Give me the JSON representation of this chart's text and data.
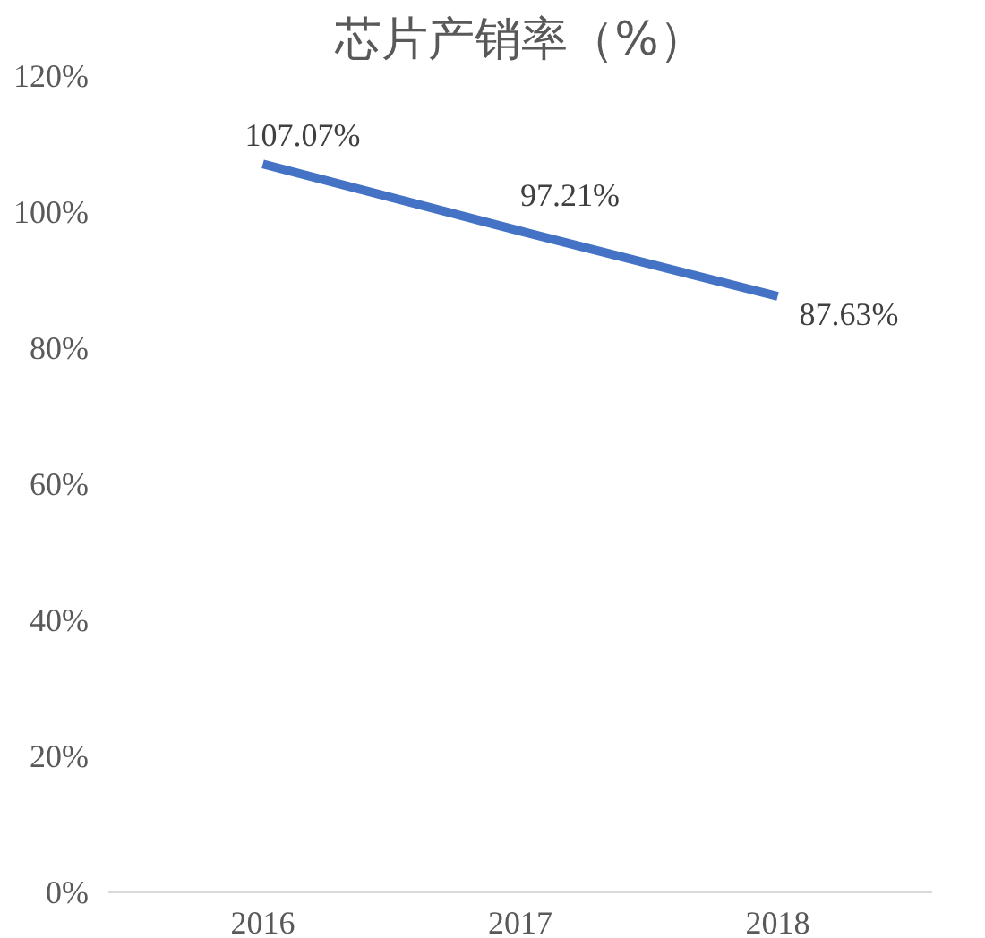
{
  "chart_data": {
    "type": "line",
    "title": "芯片产销率（%）",
    "categories": [
      "2016",
      "2017",
      "2018"
    ],
    "series": [
      {
        "color": "#4472c4",
        "values": [
          107.07,
          97.21,
          87.63
        ],
        "value_labels": [
          "107.07%",
          "97.21%",
          "87.63%"
        ]
      }
    ],
    "ylim": [
      0,
      120
    ],
    "yticks": [
      {
        "value": 0,
        "label": "0%"
      },
      {
        "value": 20,
        "label": "20%"
      },
      {
        "value": 40,
        "label": "40%"
      },
      {
        "value": 60,
        "label": "60%"
      },
      {
        "value": 80,
        "label": "80%"
      },
      {
        "value": 100,
        "label": "100%"
      },
      {
        "value": 120,
        "label": "120%"
      }
    ],
    "marker": "none",
    "line_style": "solid",
    "grid": false
  }
}
